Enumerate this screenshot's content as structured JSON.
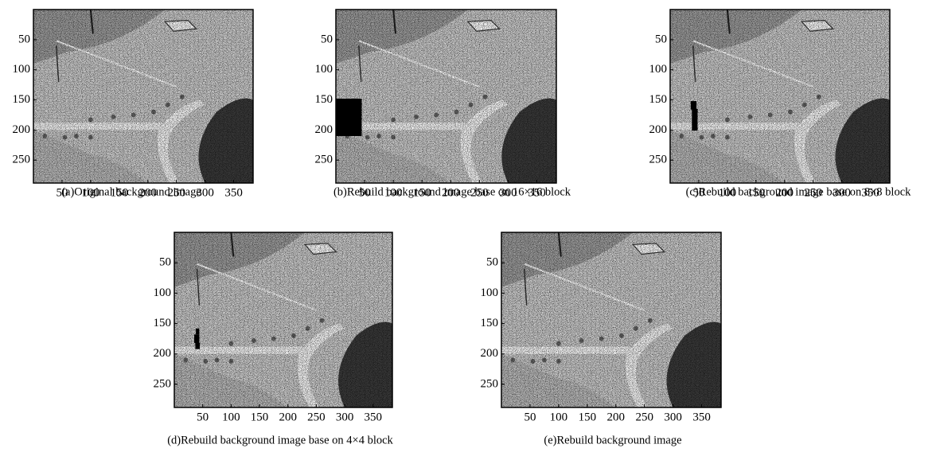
{
  "chart_data": [
    {
      "type": "image",
      "title": "(a)Original background image",
      "xlim": [
        0,
        384
      ],
      "ylim": [
        0,
        288
      ],
      "y_inverted": true,
      "xticks": [
        50,
        100,
        150,
        200,
        250,
        300,
        350
      ],
      "yticks": [
        50,
        100,
        150,
        200,
        250
      ]
    },
    {
      "type": "image",
      "title": "(b)Rebuild background image base on 16×16 block",
      "xlim": [
        0,
        384
      ],
      "ylim": [
        0,
        288
      ],
      "y_inverted": true,
      "xticks": [
        50,
        100,
        150,
        200,
        250,
        300,
        350
      ],
      "yticks": [
        50,
        100,
        150,
        200,
        250
      ]
    },
    {
      "type": "image",
      "title": "(c)Rebuild background image base on 8×8 block",
      "xlim": [
        0,
        384
      ],
      "ylim": [
        0,
        288
      ],
      "y_inverted": true,
      "xticks": [
        50,
        100,
        150,
        200,
        250,
        300,
        350
      ],
      "yticks": [
        50,
        100,
        150,
        200,
        250
      ]
    },
    {
      "type": "image",
      "title": "(d)Rebuild background image base on 4×4 block",
      "xlim": [
        0,
        384
      ],
      "ylim": [
        0,
        288
      ],
      "y_inverted": true,
      "xticks": [
        50,
        100,
        150,
        200,
        250,
        300,
        350
      ],
      "yticks": [
        50,
        100,
        150,
        200,
        250
      ]
    },
    {
      "type": "image",
      "title": "(e)Rebuild background image",
      "xlim": [
        0,
        384
      ],
      "ylim": [
        0,
        288
      ],
      "y_inverted": true,
      "xticks": [
        50,
        100,
        150,
        200,
        250,
        300,
        350
      ],
      "yticks": [
        50,
        100,
        150,
        200,
        250
      ]
    }
  ]
}
